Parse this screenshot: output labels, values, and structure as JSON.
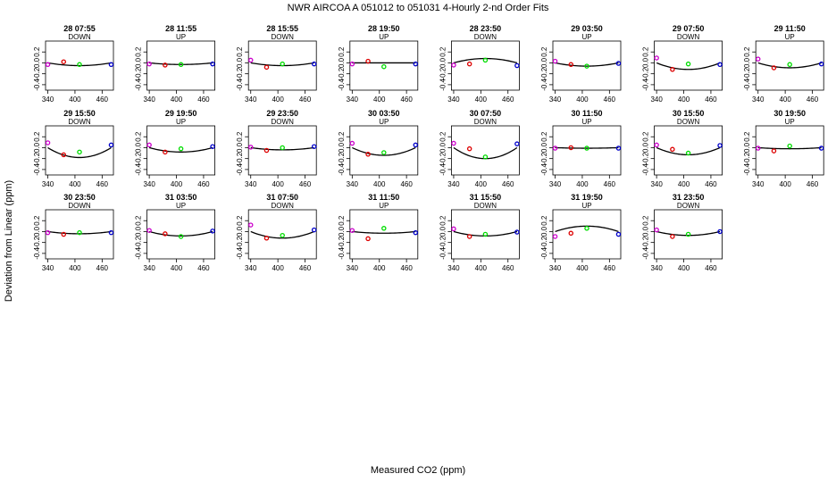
{
  "figure": {
    "title": "NWR   AIRCOA A   051012 to 051031   4-Hourly 2-nd Order Fits",
    "xlabel": "Measured CO2 (ppm)",
    "ylabel": "Deviation from Linear (ppm)"
  },
  "chart_data": {
    "type": "scatter",
    "xlim": [
      335,
      485
    ],
    "ylim": [
      -0.5,
      0.4
    ],
    "x_ticks": [
      340,
      400,
      460
    ],
    "y_ticks": [
      -0.4,
      -0.2,
      0.0,
      0.2
    ],
    "x_tick_labels": [
      "340",
      "400",
      "460"
    ],
    "y_tick_labels": [
      "-0.4",
      "-0.2",
      "0.0",
      "0.2"
    ],
    "standard_x": [
      340,
      375,
      410,
      480
    ],
    "point_colors": [
      "#cc00cc",
      "#dd0000",
      "#00dd00",
      "#0000cc"
    ],
    "panels": [
      {
        "label": "28 07:55",
        "direction": "DOWN",
        "y": [
          -0.03,
          0.02,
          -0.03,
          -0.03
        ],
        "coef": [
          -0.02,
          -0.05
        ]
      },
      {
        "label": "28 11:55",
        "direction": "UP",
        "y": [
          -0.02,
          -0.04,
          -0.03,
          -0.02
        ],
        "coef": [
          -0.03,
          -0.03
        ]
      },
      {
        "label": "28 15:55",
        "direction": "DOWN",
        "y": [
          0.05,
          -0.08,
          -0.02,
          -0.02
        ],
        "coef": [
          -0.04,
          -0.05
        ]
      },
      {
        "label": "28 19:50",
        "direction": "UP",
        "y": [
          -0.02,
          0.03,
          -0.07,
          -0.02
        ],
        "coef": [
          -0.02,
          0.0
        ]
      },
      {
        "label": "28 23:50",
        "direction": "DOWN",
        "y": [
          -0.04,
          -0.02,
          0.05,
          -0.05
        ],
        "coef": [
          0.05,
          0.08
        ]
      },
      {
        "label": "29 03:50",
        "direction": "UP",
        "y": [
          0.03,
          -0.03,
          -0.06,
          -0.01
        ],
        "coef": [
          -0.06,
          -0.06
        ]
      },
      {
        "label": "29 07:50",
        "direction": "DOWN",
        "y": [
          0.09,
          -0.12,
          -0.02,
          -0.03
        ],
        "coef": [
          -0.07,
          -0.12
        ]
      },
      {
        "label": "29 11:50",
        "direction": "UP",
        "y": [
          0.07,
          -0.09,
          -0.03,
          -0.02
        ],
        "coef": [
          -0.07,
          -0.09
        ]
      },
      {
        "label": "29 15:50",
        "direction": "DOWN",
        "y": [
          0.09,
          -0.13,
          -0.08,
          0.05
        ],
        "coef": [
          -0.14,
          -0.18
        ]
      },
      {
        "label": "29 19:50",
        "direction": "UP",
        "y": [
          0.05,
          -0.08,
          -0.02,
          0.02
        ],
        "coef": [
          -0.05,
          -0.08
        ]
      },
      {
        "label": "29 23:50",
        "direction": "DOWN",
        "y": [
          0.01,
          -0.05,
          0.0,
          0.02
        ],
        "coef": [
          -0.02,
          -0.04
        ]
      },
      {
        "label": "30 03:50",
        "direction": "UP",
        "y": [
          0.08,
          -0.12,
          -0.09,
          0.05
        ],
        "coef": [
          -0.11,
          -0.14
        ]
      },
      {
        "label": "30 07:50",
        "direction": "DOWN",
        "y": [
          0.08,
          -0.02,
          -0.17,
          0.07
        ],
        "coef": [
          -0.13,
          -0.2
        ]
      },
      {
        "label": "30 11:50",
        "direction": "UP",
        "y": [
          -0.01,
          0.0,
          -0.01,
          -0.01
        ],
        "coef": [
          -0.01,
          -0.01
        ]
      },
      {
        "label": "30 15:50",
        "direction": "DOWN",
        "y": [
          0.05,
          -0.03,
          -0.1,
          0.04
        ],
        "coef": [
          -0.08,
          -0.13
        ]
      },
      {
        "label": "30 19:50",
        "direction": "UP",
        "y": [
          -0.01,
          -0.06,
          0.03,
          -0.01
        ],
        "coef": [
          -0.01,
          -0.02
        ]
      },
      {
        "label": "30 23:50",
        "direction": "DOWN",
        "y": [
          -0.02,
          -0.05,
          -0.02,
          -0.02
        ],
        "coef": [
          -0.02,
          -0.04
        ]
      },
      {
        "label": "31 03:50",
        "direction": "UP",
        "y": [
          0.02,
          -0.04,
          -0.09,
          0.01
        ],
        "coef": [
          -0.06,
          -0.08
        ]
      },
      {
        "label": "31 07:50",
        "direction": "DOWN",
        "y": [
          0.12,
          -0.12,
          -0.07,
          0.03
        ],
        "coef": [
          -0.08,
          -0.12
        ]
      },
      {
        "label": "31 11:50",
        "direction": "UP",
        "y": [
          0.02,
          -0.13,
          0.06,
          -0.02
        ],
        "coef": [
          -0.02,
          -0.03
        ]
      },
      {
        "label": "31 15:50",
        "direction": "DOWN",
        "y": [
          0.05,
          -0.09,
          -0.05,
          -0.01
        ],
        "coef": [
          -0.05,
          -0.08
        ]
      },
      {
        "label": "31 19:50",
        "direction": "UP",
        "y": [
          -0.09,
          -0.03,
          0.06,
          -0.05
        ],
        "coef": [
          0.06,
          0.1
        ]
      },
      {
        "label": "31 23:50",
        "direction": "DOWN",
        "y": [
          0.03,
          -0.09,
          -0.05,
          0.0
        ],
        "coef": [
          -0.05,
          -0.07
        ]
      }
    ]
  }
}
